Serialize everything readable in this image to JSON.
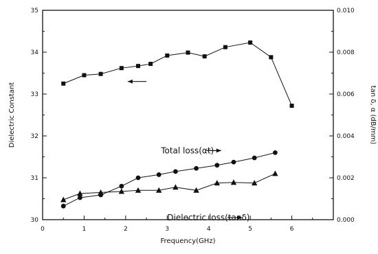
{
  "chart_data": {
    "type": "line",
    "xlabel": "Frequency(GHz)",
    "ylabel_left": "Dielectric Constant",
    "ylabel_right": "tan δ, α (dB/mm)",
    "xlim": [
      0,
      7
    ],
    "ylim_left": [
      30,
      35
    ],
    "ylim_right": [
      0,
      0.01
    ],
    "x_ticks": [
      "0",
      "1",
      "2",
      "3",
      "4",
      "5",
      "6"
    ],
    "y_left_ticks": [
      "30",
      "31",
      "32",
      "33",
      "34",
      "35"
    ],
    "y_right_ticks": [
      "0.000",
      "0.002",
      "0.004",
      "0.006",
      "0.008",
      "0.010"
    ],
    "grid": false,
    "series": [
      {
        "axis": "left",
        "marker": "square",
        "x": [
          0.5,
          1.0,
          1.4,
          1.9,
          2.3,
          2.6,
          3.0,
          3.5,
          3.9,
          4.4,
          5.0,
          5.5,
          6.0
        ],
        "values": [
          33.25,
          33.45,
          33.48,
          33.62,
          33.67,
          33.72,
          33.92,
          33.99,
          33.9,
          34.12,
          34.23,
          33.88,
          32.72
        ]
      },
      {
        "axis": "right",
        "marker": "circle",
        "x": [
          0.5,
          0.9,
          1.4,
          1.9,
          2.3,
          2.8,
          3.2,
          3.7,
          4.2,
          4.6,
          5.1,
          5.6
        ],
        "values": [
          0.00065,
          0.00105,
          0.00118,
          0.0016,
          0.002,
          0.00215,
          0.0023,
          0.00245,
          0.0026,
          0.00275,
          0.00295,
          0.0032
        ]
      },
      {
        "axis": "right",
        "marker": "triangle",
        "x": [
          0.5,
          0.9,
          1.4,
          1.9,
          2.3,
          2.8,
          3.2,
          3.7,
          4.2,
          4.6,
          5.1,
          5.6
        ],
        "values": [
          0.00095,
          0.00125,
          0.0013,
          0.00135,
          0.0014,
          0.0014,
          0.00155,
          0.0014,
          0.00175,
          0.00178,
          0.00175,
          0.0022
        ]
      }
    ],
    "annotations": [
      {
        "text": "Total loss(αt)",
        "x": 2.85,
        "y_right": 0.0033,
        "arrow": "right",
        "arrow_x": [
          3.95,
          4.3
        ]
      },
      {
        "text": "Dielectric loss(tanδ)",
        "x": 3.0,
        "y_right": 0.0001,
        "arrow": "right",
        "arrow_x": [
          4.45,
          4.8
        ]
      },
      {
        "text": "",
        "arrow": "left",
        "arrow_x": [
          2.5,
          2.05
        ],
        "y_left": 33.3
      }
    ]
  }
}
